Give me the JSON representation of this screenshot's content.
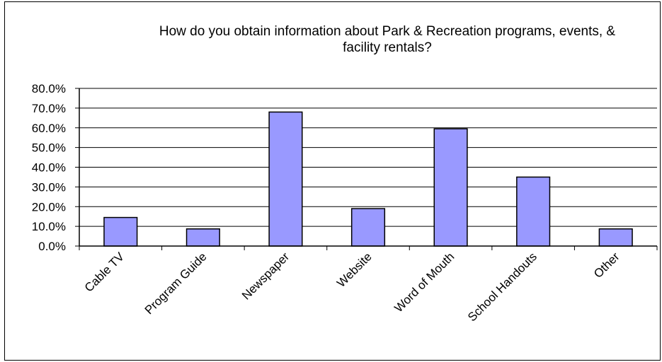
{
  "chart_data": {
    "type": "bar",
    "title_lines": [
      "How do you obtain information about Park & Recreation programs, events, &",
      "facility rentals?"
    ],
    "categories": [
      "Cable TV",
      "Program Guide",
      "Newspaper",
      "Website",
      "Word of Mouth",
      "School Handouts",
      "Other"
    ],
    "values": [
      14.5,
      8.7,
      68.0,
      19.0,
      59.5,
      35.0,
      8.7
    ],
    "ylim": [
      0,
      80
    ],
    "yticks": [
      "0.0%",
      "10.0%",
      "20.0%",
      "30.0%",
      "40.0%",
      "50.0%",
      "60.0%",
      "70.0%",
      "80.0%"
    ],
    "grid": true,
    "legend": "none",
    "bar_color": "#9999ff",
    "bar_edge_color": "#000000"
  }
}
